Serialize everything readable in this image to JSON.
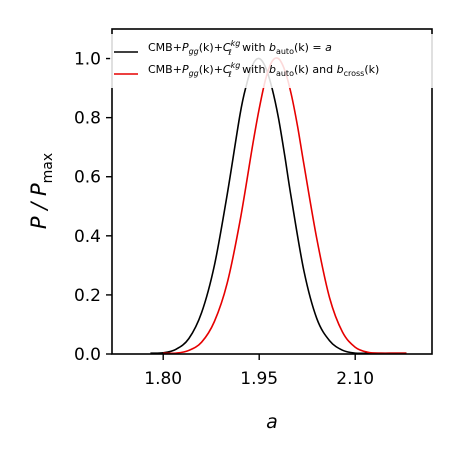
{
  "chart_data": {
    "type": "line",
    "title": "",
    "xlabel": "a",
    "ylabel": "P / P_max",
    "ylabel_parts": {
      "main": "P / P",
      "sub": "max"
    },
    "xlim": [
      1.72,
      2.22
    ],
    "ylim": [
      0.0,
      1.1
    ],
    "xticks": [
      1.8,
      1.95,
      2.1
    ],
    "xtick_labels": [
      "1.80",
      "1.95",
      "2.10"
    ],
    "yticks": [
      0.0,
      0.2,
      0.4,
      0.6,
      0.8,
      1.0
    ],
    "ytick_labels": [
      "0.0",
      "0.2",
      "0.4",
      "0.6",
      "0.8",
      "1.0"
    ],
    "grid": false,
    "legend_position": "top-left",
    "series": [
      {
        "name": "CMB+P_gg(k)+C_ℓ^kg with b_auto(k) = a",
        "color": "#000000",
        "x": [
          1.78,
          1.8,
          1.82,
          1.84,
          1.86,
          1.88,
          1.9,
          1.92,
          1.93,
          1.94,
          1.95,
          1.96,
          1.97,
          1.98,
          1.99,
          2.0,
          2.02,
          2.04,
          2.06,
          2.08,
          2.1,
          2.12,
          2.14,
          2.16,
          2.18
        ],
        "y": [
          0.0,
          0.004,
          0.016,
          0.052,
          0.14,
          0.3,
          0.54,
          0.81,
          0.91,
          0.98,
          1.0,
          0.97,
          0.9,
          0.8,
          0.67,
          0.53,
          0.28,
          0.12,
          0.045,
          0.013,
          0.003,
          0.001,
          0.0,
          0.0,
          0.0
        ]
      },
      {
        "name": "CMB+P_gg(k)+C_ℓ^kg with b_auto(k) and b_cross(k)",
        "color": "#e60000",
        "x": [
          1.8,
          1.82,
          1.84,
          1.86,
          1.88,
          1.9,
          1.92,
          1.94,
          1.95,
          1.96,
          1.97,
          1.98,
          1.99,
          2.0,
          2.01,
          2.02,
          2.04,
          2.06,
          2.08,
          2.1,
          2.12,
          2.14,
          2.16,
          2.18
        ],
        "y": [
          0.0,
          0.003,
          0.012,
          0.04,
          0.11,
          0.24,
          0.45,
          0.71,
          0.83,
          0.93,
          0.99,
          1.0,
          0.96,
          0.88,
          0.77,
          0.64,
          0.39,
          0.19,
          0.075,
          0.023,
          0.006,
          0.001,
          0.0,
          0.0
        ]
      }
    ]
  },
  "legend": {
    "entries": [
      {
        "color": "#000000",
        "prefix": "CMB+",
        "pgg_main": "P",
        "pgg_sub": "gg",
        "k_text": "(k)+",
        "c_main": "C",
        "c_sup": "kg",
        "c_sub": "ℓ",
        "middle": " with ",
        "b1_main": "b",
        "b1_sub": "auto",
        "b1_tail": "(k) = ",
        "b2_main": "a",
        "b2_sub": "",
        "b2_tail": ""
      },
      {
        "color": "#e60000",
        "prefix": "CMB+",
        "pgg_main": "P",
        "pgg_sub": "gg",
        "k_text": "(k)+",
        "c_main": "C",
        "c_sup": "kg",
        "c_sub": "ℓ",
        "middle": " with ",
        "b1_main": "b",
        "b1_sub": "auto",
        "b1_tail": "(k) and ",
        "b2_main": "b",
        "b2_sub": "cross",
        "b2_tail": "(k)"
      }
    ]
  }
}
